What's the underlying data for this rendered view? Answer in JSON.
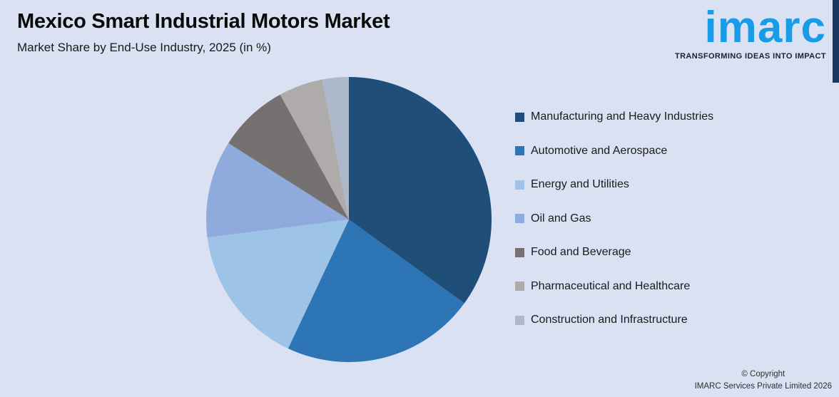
{
  "header": {
    "title": "Mexico Smart Industrial Motors Market",
    "subtitle": "Market Share by End-Use Industry, 2025 (in %)"
  },
  "logo": {
    "wordmark": "imarc",
    "tagline": "TRANSFORMING IDEAS INTO IMPACT",
    "brand_color": "#189CE8",
    "tagline_color": "#15223D"
  },
  "chart_data": {
    "type": "pie",
    "title": "Mexico Smart Industrial Motors Market",
    "subtitle": "Market Share by End-Use Industry, 2025 (in %)",
    "unit": "%",
    "direction": "clockwise",
    "start_angle_deg": 0,
    "legend_position": "right",
    "data_labels_shown": false,
    "categories": [
      "Manufacturing and Heavy Industries",
      "Automotive and Aerospace",
      "Energy and Utilities",
      "Oil and Gas",
      "Food and Beverage",
      "Pharmaceutical and Healthcare",
      "Construction and Infrastructure"
    ],
    "values": [
      35,
      22,
      16,
      11,
      8,
      5,
      3
    ],
    "colors": [
      "#1F4E79",
      "#2E75B6",
      "#9DC3E6",
      "#8FAADC",
      "#767171",
      "#AFABAB",
      "#ADB9CA"
    ]
  },
  "footer": {
    "copyright_line1": "© Copyright",
    "copyright_line2": "IMARC Services Private Limited 2026"
  },
  "theme": {
    "background": "#D9E1F2",
    "accent_bar_color": "#17375E"
  }
}
